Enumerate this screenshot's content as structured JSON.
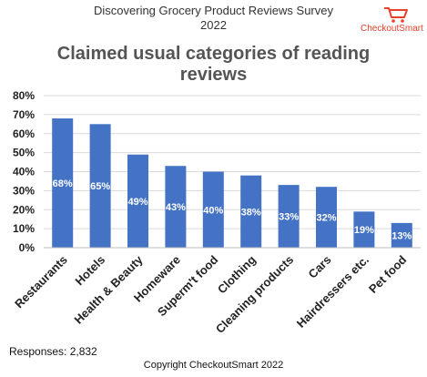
{
  "header": {
    "survey_title_line1": "Discovering Grocery Product Reviews Survey",
    "survey_title_line2": "2022",
    "logo_text": "CheckoutSmart",
    "logo_icon": "shopping-cart-icon",
    "logo_color": "#e8402b"
  },
  "chart_data": {
    "type": "bar",
    "title": "Claimed usual categories of reading reviews",
    "title_line1": "Claimed usual categories of reading",
    "title_line2": "reviews",
    "categories": [
      "Restaurants",
      "Hotels",
      "Health & Beauty",
      "Homeware",
      "Superm't food",
      "Clothing",
      "Cleaning products",
      "Cars",
      "Hairdressers etc.",
      "Pet food"
    ],
    "values": [
      68,
      65,
      49,
      43,
      40,
      38,
      33,
      32,
      19,
      13
    ],
    "data_labels": [
      "68%",
      "65%",
      "49%",
      "43%",
      "40%",
      "38%",
      "33%",
      "32%",
      "19%",
      "13%"
    ],
    "yticks": [
      "0%",
      "10%",
      "20%",
      "30%",
      "40%",
      "50%",
      "60%",
      "70%",
      "80%"
    ],
    "ylim": [
      0,
      80
    ],
    "grid": true,
    "bar_color": "#4472c4",
    "data_label_color": "#ffffff"
  },
  "footer": {
    "responses": "Responses: 2,832",
    "copyright": "Copyright CheckoutSmart 2022"
  }
}
